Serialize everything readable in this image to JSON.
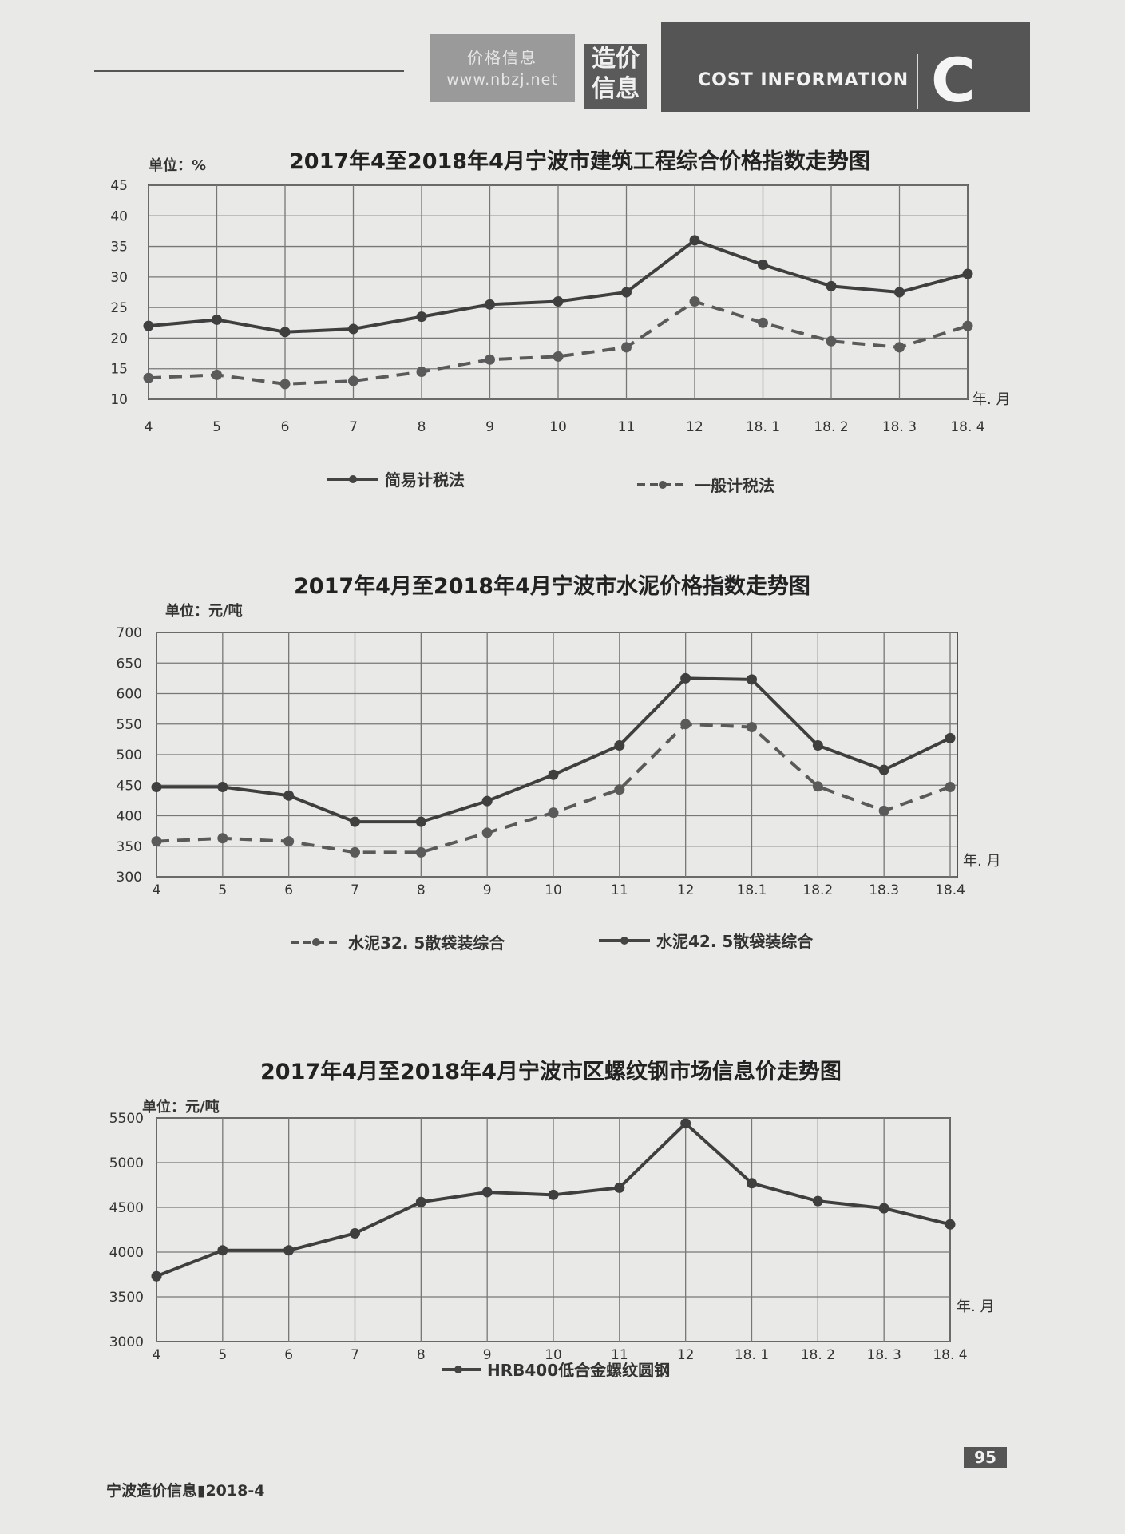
{
  "header": {
    "logo_line1": "价格信息",
    "logo_line2": "www.nbzj.net",
    "tag_top": "造价",
    "tag_bottom": "信息",
    "banner_text": "COST INFORMATION",
    "banner_letter": "C"
  },
  "chart_data": [
    {
      "type": "line",
      "title": "2017年4至2018年4月宁波市建筑工程综合价格指数走势图",
      "unit": "单位：%",
      "xlabel": "年. 月",
      "categories": [
        "4",
        "5",
        "6",
        "7",
        "8",
        "9",
        "10",
        "11",
        "12",
        "18. 1",
        "18. 2",
        "18. 3",
        "18. 4"
      ],
      "yticks": [
        10,
        15,
        20,
        25,
        30,
        35,
        40,
        45
      ],
      "ylim": [
        10,
        45
      ],
      "grid": true,
      "series": [
        {
          "name": "简易计税法",
          "style": "solid",
          "values": [
            22,
            23,
            21,
            21.5,
            23.5,
            25.5,
            26,
            27.5,
            36,
            32,
            28.5,
            27.5,
            30.5
          ]
        },
        {
          "name": "一般计税法",
          "style": "dashed",
          "values": [
            13.5,
            14,
            12.5,
            13,
            14.5,
            16.5,
            17,
            18.5,
            26,
            22.5,
            19.5,
            18.5,
            22
          ]
        }
      ]
    },
    {
      "type": "line",
      "title": "2017年4月至2018年4月宁波市水泥价格指数走势图",
      "unit": "单位：元/吨",
      "xlabel": "年. 月",
      "categories": [
        "4",
        "5",
        "6",
        "7",
        "8",
        "9",
        "10",
        "11",
        "12",
        "18.1",
        "18.2",
        "18.3",
        "18.4"
      ],
      "yticks": [
        300,
        350,
        400,
        450,
        500,
        550,
        600,
        650,
        700
      ],
      "ylim": [
        300,
        700
      ],
      "grid": true,
      "series": [
        {
          "name": "水泥32. 5散袋装综合",
          "style": "dashed",
          "values": [
            358,
            363,
            358,
            340,
            340,
            372,
            405,
            443,
            550,
            545,
            448,
            408,
            447
          ]
        },
        {
          "name": "水泥42. 5散袋装综合",
          "style": "solid",
          "values": [
            447,
            447,
            433,
            390,
            390,
            424,
            467,
            515,
            625,
            623,
            515,
            475,
            527
          ]
        }
      ]
    },
    {
      "type": "line",
      "title": "2017年4月至2018年4月宁波市区螺纹钢市场信息价走势图",
      "unit": "单位：元/吨",
      "xlabel": "年. 月",
      "categories": [
        "4",
        "5",
        "6",
        "7",
        "8",
        "9",
        "10",
        "11",
        "12",
        "18. 1",
        "18. 2",
        "18. 3",
        "18. 4"
      ],
      "yticks": [
        3000,
        3500,
        4000,
        4500,
        5000,
        5500
      ],
      "ylim": [
        3000,
        5500
      ],
      "grid": true,
      "series": [
        {
          "name": "HRB400低合金螺纹圆钢",
          "style": "solid",
          "values": [
            3730,
            4020,
            4020,
            4210,
            4560,
            4670,
            4640,
            4720,
            5440,
            4770,
            4570,
            4490,
            4310
          ]
        }
      ]
    }
  ],
  "footer": {
    "publication": "宁波造价信息▮2018-4",
    "page_number": "95"
  }
}
